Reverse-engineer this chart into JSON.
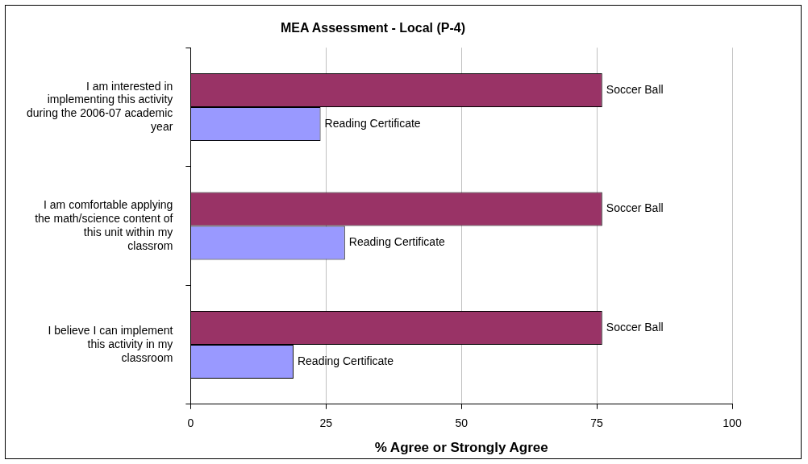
{
  "chart_data": {
    "type": "bar",
    "orientation": "horizontal",
    "title": "MEA Assessment - Local (P-4)",
    "xlabel": "% Agree or Strongly Agree",
    "categories": [
      "I am interested in implementing this activity during the 2006-07 academic year",
      "I am comfortable applying the math/science content of this unit within my classrom",
      "I believe I can implement this activity in my classroom"
    ],
    "series": [
      {
        "name": "Soccer Ball",
        "color": "#993366",
        "values": [
          76,
          76,
          76
        ]
      },
      {
        "name": "Reading Certificate",
        "color": "#9999ff",
        "values": [
          24,
          28.5,
          19
        ]
      }
    ],
    "xlim": [
      0,
      100
    ],
    "xticks": [
      0,
      25,
      50,
      75,
      100
    ],
    "grid": "x",
    "legend": false
  }
}
